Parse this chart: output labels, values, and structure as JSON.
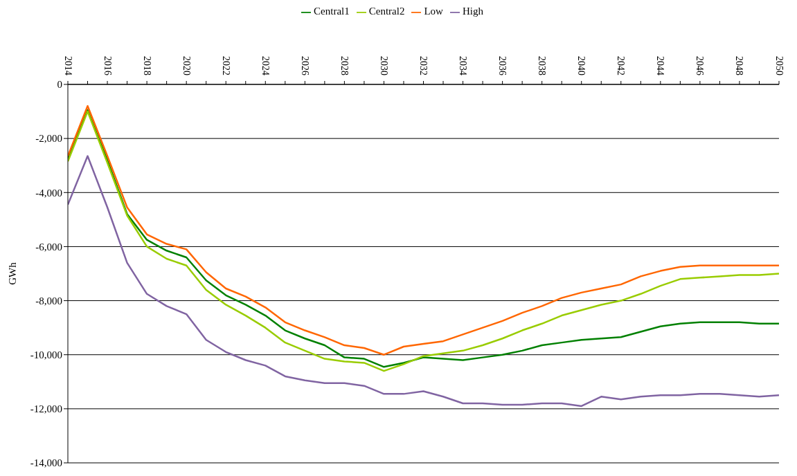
{
  "chart_data": {
    "type": "line",
    "ylabel": "GWh",
    "x": [
      2014,
      2015,
      2016,
      2017,
      2018,
      2019,
      2020,
      2021,
      2022,
      2023,
      2024,
      2025,
      2026,
      2027,
      2028,
      2029,
      2030,
      2031,
      2032,
      2033,
      2034,
      2035,
      2036,
      2037,
      2038,
      2039,
      2040,
      2041,
      2042,
      2043,
      2044,
      2045,
      2046,
      2047,
      2048,
      2049,
      2050
    ],
    "series": [
      {
        "name": "Central1",
        "color": "#008000",
        "values": [
          -2750,
          -950,
          -2800,
          -4800,
          -5750,
          -6150,
          -6400,
          -7250,
          -7800,
          -8150,
          -8550,
          -9100,
          -9400,
          -9650,
          -10100,
          -10150,
          -10450,
          -10300,
          -10100,
          -10150,
          -10200,
          -10100,
          -10000,
          -9850,
          -9650,
          -9550,
          -9450,
          -9400,
          -9350,
          -9150,
          -8950,
          -8850,
          -8800,
          -8800,
          -8800,
          -8850,
          -8850
        ]
      },
      {
        "name": "Central2",
        "color": "#99cc00",
        "values": [
          -2850,
          -1000,
          -2900,
          -4850,
          -6000,
          -6450,
          -6700,
          -7600,
          -8150,
          -8550,
          -9000,
          -9550,
          -9850,
          -10150,
          -10250,
          -10300,
          -10600,
          -10350,
          -10050,
          -9950,
          -9850,
          -9650,
          -9400,
          -9100,
          -8850,
          -8550,
          -8350,
          -8150,
          -8000,
          -7750,
          -7450,
          -7200,
          -7150,
          -7100,
          -7050,
          -7050,
          -7000
        ]
      },
      {
        "name": "Low",
        "color": "#ff6600",
        "values": [
          -2650,
          -800,
          -2650,
          -4550,
          -5550,
          -5900,
          -6100,
          -6950,
          -7550,
          -7850,
          -8250,
          -8800,
          -9100,
          -9350,
          -9650,
          -9750,
          -10000,
          -9700,
          -9600,
          -9500,
          -9250,
          -9000,
          -8750,
          -8450,
          -8200,
          -7900,
          -7700,
          -7550,
          -7400,
          -7100,
          -6900,
          -6750,
          -6700,
          -6700,
          -6700,
          -6700,
          -6700
        ]
      },
      {
        "name": "High",
        "color": "#8064a2",
        "values": [
          -4450,
          -2650,
          -4550,
          -6600,
          -7750,
          -8200,
          -8500,
          -9450,
          -9900,
          -10200,
          -10400,
          -10800,
          -10950,
          -11050,
          -11050,
          -11150,
          -11450,
          -11450,
          -11350,
          -11550,
          -11800,
          -11800,
          -11850,
          -11850,
          -11800,
          -11800,
          -11900,
          -11550,
          -11650,
          -11550,
          -11500,
          -11500,
          -11450,
          -11450,
          -11500,
          -11550,
          -11500
        ]
      }
    ],
    "xlim": [
      2014,
      2050
    ],
    "xticks": [
      2014,
      {
        "value": 2015,
        "label": null
      },
      2016,
      {
        "value": 2017,
        "label": null
      },
      2018,
      {
        "value": 2019,
        "label": null
      },
      2020,
      {
        "value": 2021,
        "label": null
      },
      2022,
      {
        "value": 2023,
        "label": null
      },
      2024,
      {
        "value": 2025,
        "label": null
      },
      2026,
      {
        "value": 2027,
        "label": null
      },
      2028,
      {
        "value": 2029,
        "label": null
      },
      2030,
      {
        "value": 2031,
        "label": null
      },
      2032,
      {
        "value": 2033,
        "label": null
      },
      2034,
      {
        "value": 2035,
        "label": null
      },
      2036,
      {
        "value": 2037,
        "label": null
      },
      2038,
      {
        "value": 2039,
        "label": null
      },
      2040,
      {
        "value": 2041,
        "label": null
      },
      2042,
      {
        "value": 2043,
        "label": null
      },
      2044,
      {
        "value": 2045,
        "label": null
      },
      2046,
      {
        "value": 2047,
        "label": null
      },
      2048,
      {
        "value": 2049,
        "label": null
      },
      2050
    ],
    "ylim": [
      -14000,
      0
    ],
    "yticks": [
      0,
      {
        "value": -2000,
        "label": "-2,000"
      },
      {
        "value": -4000,
        "label": "-4,000"
      },
      {
        "value": -6000,
        "label": "-6,000"
      },
      {
        "value": -8000,
        "label": "-8,000"
      },
      {
        "value": -10000,
        "label": "-10,000"
      },
      {
        "value": -12000,
        "label": "-12,000"
      },
      {
        "value": -14000,
        "label": "-14,000"
      }
    ],
    "grid": "y",
    "legend": "top",
    "marker": "none",
    "line_style": "solid"
  }
}
